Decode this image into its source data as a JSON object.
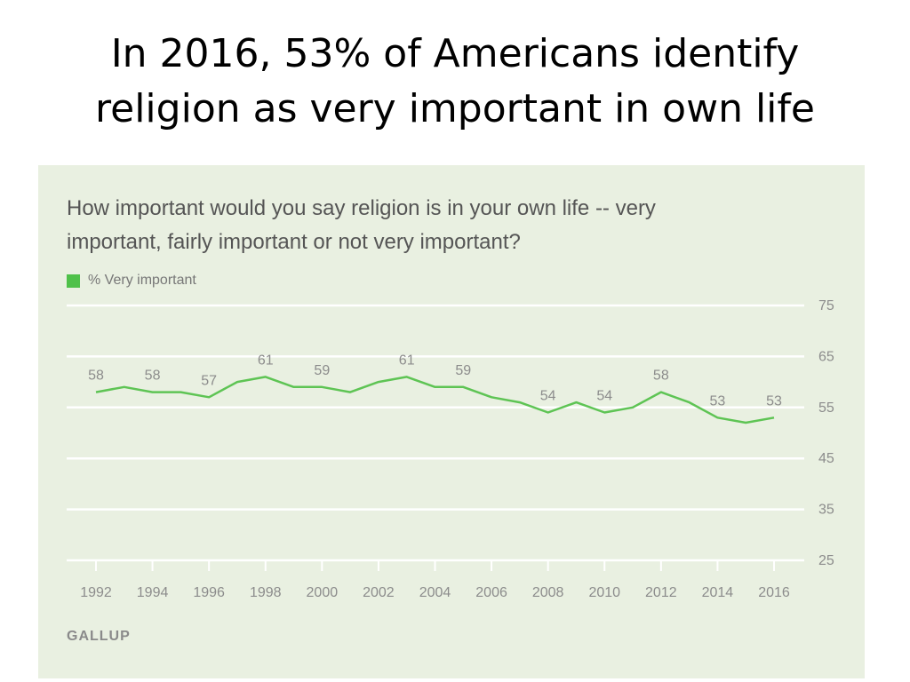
{
  "slide": {
    "title_line1": "In 2016, 53% of Americans identify",
    "title_line2": "religion as very important in own life"
  },
  "chart_data": {
    "type": "line",
    "title": "How important would you say religion is in your own life -- very important, fairly important or not very important?",
    "question_line1": "How important would you say religion is in your own life -- very",
    "question_line2": "important, fairly important or not very important?",
    "legend": [
      "% Very important"
    ],
    "source": "GALLUP",
    "x": [
      1992,
      1993,
      1994,
      1995,
      1996,
      1997,
      1998,
      1999,
      2000,
      2001,
      2002,
      2003,
      2004,
      2005,
      2006,
      2007,
      2008,
      2009,
      2010,
      2011,
      2012,
      2013,
      2014,
      2015,
      2016
    ],
    "series": [
      {
        "name": "% Very important",
        "color": "#5ec454",
        "values": [
          58,
          59,
          58,
          58,
          57,
          60,
          61,
          59,
          59,
          58,
          60,
          61,
          59,
          59,
          57,
          56,
          54,
          56,
          54,
          55,
          58,
          56,
          53,
          52,
          53
        ]
      }
    ],
    "x_tick_labels": [
      "1992",
      "1994",
      "1996",
      "1998",
      "2000",
      "2002",
      "2004",
      "2006",
      "2008",
      "2010",
      "2012",
      "2014",
      "2016"
    ],
    "y_ticks": [
      25,
      35,
      45,
      55,
      65,
      75
    ],
    "ylim": [
      25,
      75
    ],
    "data_labels": [
      {
        "x": 1992,
        "text": "58"
      },
      {
        "x": 1994,
        "text": "58"
      },
      {
        "x": 1996,
        "text": "57"
      },
      {
        "x": 1998,
        "text": "61"
      },
      {
        "x": 2000,
        "text": "59"
      },
      {
        "x": 2003,
        "text": "61"
      },
      {
        "x": 2005,
        "text": "59"
      },
      {
        "x": 2008,
        "text": "54"
      },
      {
        "x": 2010,
        "text": "54"
      },
      {
        "x": 2012,
        "text": "58"
      },
      {
        "x": 2014,
        "text": "53"
      },
      {
        "x": 2016,
        "text": "53"
      }
    ],
    "grid": true,
    "y_axis_side": "right",
    "legend_position": "top-left"
  }
}
